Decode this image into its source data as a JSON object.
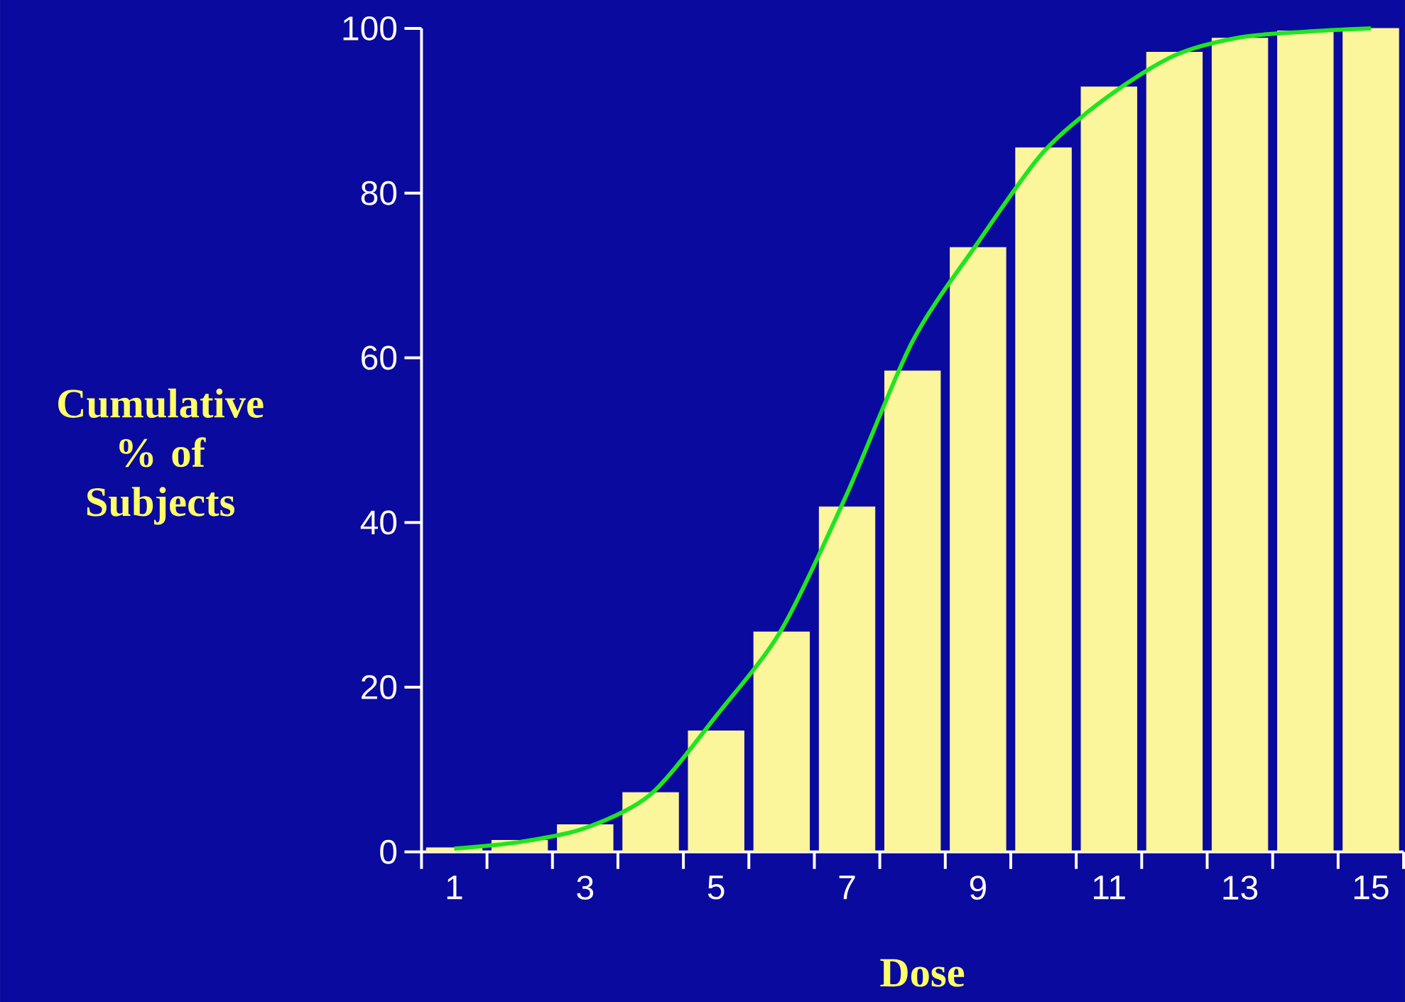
{
  "chart_data": {
    "type": "bar",
    "xlabel": "Dose",
    "ylabel": "Cumulative % of Subjects",
    "categories": [
      "1",
      null,
      "3",
      null,
      "5",
      null,
      "7",
      null,
      "9",
      null,
      "11",
      null,
      "13",
      null,
      "15"
    ],
    "ylim": [
      0,
      100
    ],
    "yticks": [
      0,
      20,
      40,
      60,
      80,
      100
    ],
    "grid": false,
    "series": [
      {
        "color": "#fbf59c",
        "values": [
          0.5,
          1.4,
          3.3,
          7.2,
          14.7,
          26.7,
          41.9,
          58.4,
          73.4,
          85.5,
          92.9,
          97.1,
          98.8,
          99.7,
          100
        ]
      },
      {
        "type": "line",
        "color": "#22e322",
        "values": [
          0.4,
          1.2,
          2.9,
          7.0,
          16.5,
          27,
          43.5,
          62,
          74,
          85,
          91.8,
          96.7,
          98.9,
          99.6,
          100
        ]
      }
    ]
  }
}
